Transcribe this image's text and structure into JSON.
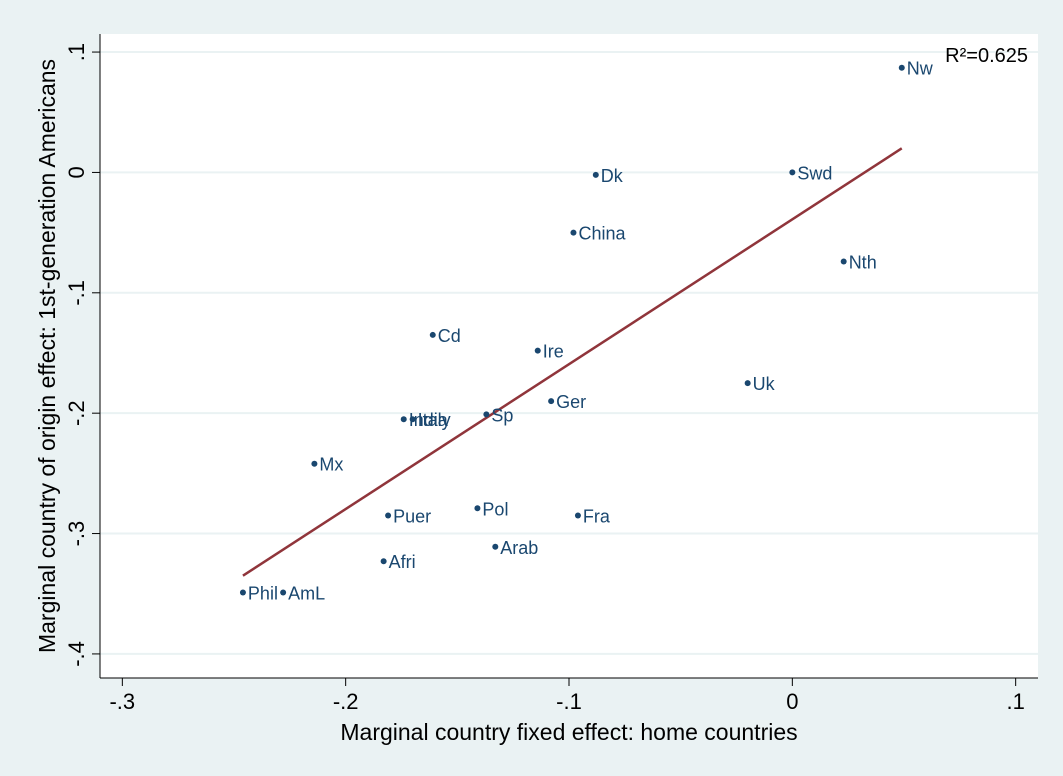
{
  "chart_data": {
    "type": "scatter",
    "xlabel": "Marginal country fixed effect: home countries",
    "ylabel": "Marginal country of origin effect: 1st-generation Americans",
    "xlim": [
      -0.31,
      0.11
    ],
    "ylim": [
      -0.42,
      0.115
    ],
    "xticks": [
      {
        "value": -0.3,
        "label": "-.3"
      },
      {
        "value": -0.2,
        "label": "-.2"
      },
      {
        "value": -0.1,
        "label": "-.1"
      },
      {
        "value": 0,
        "label": "0"
      },
      {
        "value": 0.1,
        "label": ".1"
      }
    ],
    "yticks": [
      {
        "value": 0.1,
        "label": ".1"
      },
      {
        "value": 0,
        "label": "0"
      },
      {
        "value": -0.1,
        "label": "-.1"
      },
      {
        "value": -0.2,
        "label": "-.2"
      },
      {
        "value": -0.3,
        "label": "-.3"
      },
      {
        "value": -0.4,
        "label": "-.4"
      }
    ],
    "grid": "horizontal",
    "annotation": "R²=0.625",
    "fit_line": {
      "x": [
        -0.246,
        0.049
      ],
      "y": [
        -0.335,
        0.02
      ]
    },
    "points": [
      {
        "label": "Nw",
        "x": 0.049,
        "y": 0.087
      },
      {
        "label": "Swd",
        "x": 0.0,
        "y": 0.0
      },
      {
        "label": "Dk",
        "x": -0.088,
        "y": -0.002
      },
      {
        "label": "China",
        "x": -0.098,
        "y": -0.05
      },
      {
        "label": "Nth",
        "x": 0.023,
        "y": -0.074
      },
      {
        "label": "Cd",
        "x": -0.161,
        "y": -0.135
      },
      {
        "label": "Ire",
        "x": -0.114,
        "y": -0.148
      },
      {
        "label": "Uk",
        "x": -0.02,
        "y": -0.175
      },
      {
        "label": "Ger",
        "x": -0.108,
        "y": -0.19
      },
      {
        "label": "Sp",
        "x": -0.137,
        "y": -0.201
      },
      {
        "label": "Italy",
        "x": -0.17,
        "y": -0.205
      },
      {
        "label": "India",
        "x": -0.174,
        "y": -0.205
      },
      {
        "label": "Mx",
        "x": -0.214,
        "y": -0.242
      },
      {
        "label": "Pol",
        "x": -0.141,
        "y": -0.279
      },
      {
        "label": "Puer",
        "x": -0.181,
        "y": -0.285
      },
      {
        "label": "Fra",
        "x": -0.096,
        "y": -0.285
      },
      {
        "label": "Arab",
        "x": -0.133,
        "y": -0.311
      },
      {
        "label": "Afri",
        "x": -0.183,
        "y": -0.323
      },
      {
        "label": "Phil",
        "x": -0.246,
        "y": -0.349
      },
      {
        "label": "AmL",
        "x": -0.228,
        "y": -0.349
      }
    ],
    "colors": {
      "plot_background": "#ffffff",
      "outer_background": "#eaf2f3",
      "grid": "#eaf2f3",
      "points": "#1a476f",
      "labels": "#1a476f",
      "fit_line": "#90353b"
    }
  }
}
